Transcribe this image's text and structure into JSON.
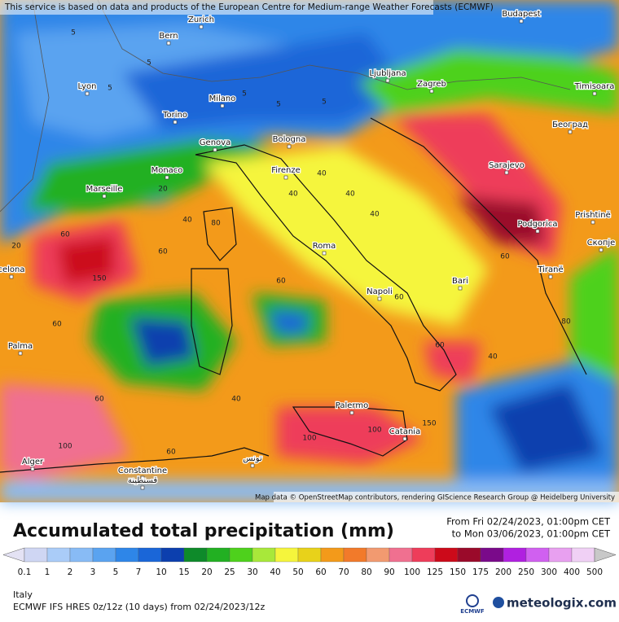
{
  "notice": "This service is based on data and products of the European Centre for Medium-range Weather Forecasts (ECMWF)",
  "attribution": "Map data © OpenStreetMap contributors, rendering GIScience Research Group @ Heidelberg University",
  "title": "Accumulated total precipitation (mm)",
  "period": {
    "from": "From Fri 02/24/2023, 01:00pm CET",
    "to": "to Mon 03/06/2023, 01:00pm CET"
  },
  "legend": {
    "labels": [
      "0.1",
      "1",
      "2",
      "3",
      "5",
      "7",
      "10",
      "15",
      "20",
      "25",
      "30",
      "40",
      "50",
      "60",
      "70",
      "80",
      "90",
      "100",
      "125",
      "150",
      "175",
      "200",
      "250",
      "300",
      "400",
      "500"
    ],
    "colors": [
      "#e4e2f4",
      "#cfd6f3",
      "#aaccf8",
      "#88bbf5",
      "#5aa3f0",
      "#2e86e8",
      "#1a66d8",
      "#0c3fae",
      "#0e8a2a",
      "#22b022",
      "#4ed11c",
      "#a8e83a",
      "#f5f53c",
      "#e8d21a",
      "#f39a1a",
      "#f27a2a",
      "#f29a70",
      "#f07090",
      "#ee3d5a",
      "#cc0a1a",
      "#9a0a2a",
      "#7a0a8a",
      "#b020e0",
      "#d060f0",
      "#e8a0f0",
      "#f0d0f5",
      "#c8c8c8"
    ]
  },
  "region": "Italy",
  "model": "ECMWF IFS HRES 0z/12z (10 days) from 02/24/2023/12z",
  "brand": {
    "ecmwf": "ECMWF",
    "meteologix": "meteologix.com"
  },
  "cities": [
    "Zurich",
    "Bern",
    "Lyon",
    "Torino",
    "Milano",
    "Genova",
    "Bologna",
    "Monaco",
    "Marseille",
    "Firenze",
    "Ljubljana",
    "Zagreb",
    "Timisoara",
    "Београд",
    "Sarajevo",
    "Podgorica",
    "Prishtinë",
    "Скопје",
    "Tiranë",
    "Roma",
    "Bari",
    "Napoli",
    "Palma",
    "Palermo",
    "Catania",
    "Alger",
    "Constantine",
    "قسنطينة",
    "تونس",
    "celona",
    "Budapest"
  ],
  "contour_labels": [
    5,
    5,
    5,
    5,
    5,
    5,
    20,
    60,
    150,
    20,
    40,
    80,
    60,
    40,
    40,
    40,
    40,
    60,
    60,
    60,
    40,
    60,
    60,
    40,
    100,
    100,
    150,
    100,
    60,
    80,
    60
  ]
}
